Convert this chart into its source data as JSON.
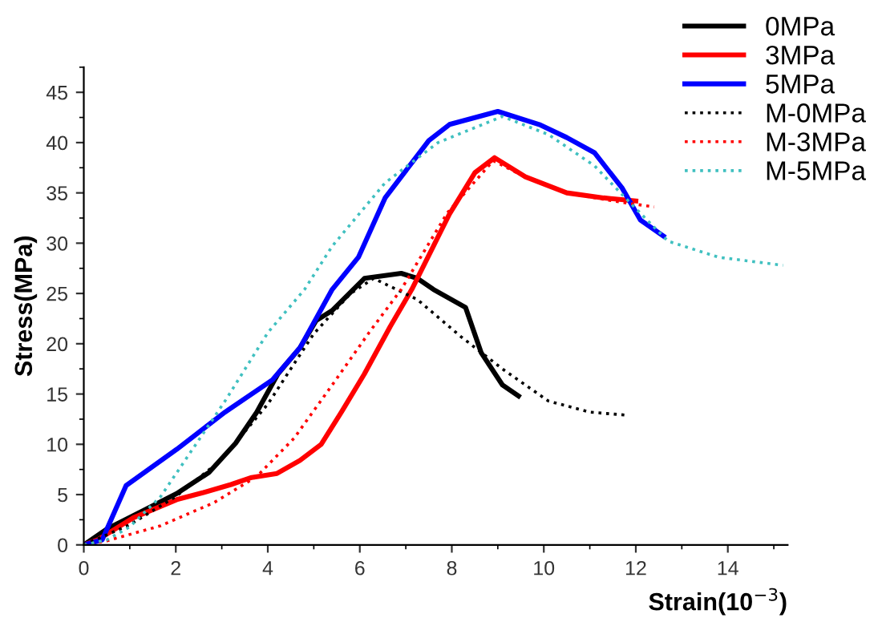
{
  "chart_data": {
    "type": "line",
    "xlabel": "Strain(10$^{−3}$)",
    "ylabel": "Stress(MPa)",
    "xlim": [
      0,
      15.3
    ],
    "xticks": [
      0,
      2,
      4,
      6,
      8,
      10,
      12,
      14
    ],
    "ylim": [
      0,
      47.5
    ],
    "yticks": [
      0,
      5,
      10,
      15,
      20,
      25,
      30,
      35,
      40,
      45
    ],
    "grid": false,
    "legend": "top right",
    "marker": "none",
    "series": [
      {
        "name": "0MPa",
        "color": "#000000",
        "line_style": "solid",
        "x": [
          0,
          0.51,
          1.2,
          2.02,
          2.72,
          3.3,
          3.76,
          4.22,
          4.7,
          5.05,
          5.4,
          6.1,
          6.9,
          7.25,
          7.6,
          8.3,
          8.64,
          9.1,
          9.45
        ],
        "values": [
          0,
          1.6,
          3.2,
          5.1,
          7.2,
          10.1,
          13.2,
          17,
          19.6,
          22.3,
          23.3,
          26.5,
          27.0,
          26.5,
          25.4,
          23.6,
          19.1,
          15.9,
          14.8
        ]
      },
      {
        "name": "3MPa",
        "color": "#ff0000",
        "line_style": "solid",
        "x": [
          0,
          0.3,
          1.08,
          2.02,
          2.6,
          3.2,
          3.65,
          4.2,
          4.7,
          5.16,
          5.6,
          6.1,
          6.66,
          7.13,
          7.95,
          8.5,
          8.93,
          9.6,
          10.5,
          11.3,
          12.0
        ],
        "values": [
          0,
          0.5,
          2.7,
          4.5,
          5.2,
          6.0,
          6.7,
          7.1,
          8.4,
          10.0,
          13.2,
          17,
          21.7,
          25.4,
          32.9,
          37.0,
          38.5,
          36.6,
          35.0,
          34.5,
          34.2
        ]
      },
      {
        "name": "5MPa",
        "color": "#0000ff",
        "line_style": "solid",
        "x": [
          0,
          0.4,
          0.92,
          2.02,
          3.07,
          4.1,
          4.7,
          5.4,
          5.97,
          6.55,
          7.5,
          7.95,
          9.0,
          9.9,
          10.5,
          11.1,
          11.7,
          12.1,
          12.6
        ],
        "values": [
          0,
          0.5,
          5.9,
          9.5,
          13.2,
          16.4,
          19.6,
          25.4,
          28.6,
          34.5,
          40.2,
          41.8,
          43.1,
          41.8,
          40.5,
          39,
          35.5,
          32.3,
          30.7
        ]
      },
      {
        "name": "M-0MPa",
        "color": "#000000",
        "line_style": "dotted",
        "x": [
          0,
          1,
          2,
          3,
          4,
          5,
          5.8,
          6.3,
          7.25,
          8.2,
          9.1,
          10.1,
          11.0,
          11.8
        ],
        "values": [
          0,
          2,
          4.8,
          8.5,
          14,
          21,
          25,
          26.5,
          24.4,
          20.7,
          17.5,
          14.3,
          13.2,
          12.9
        ]
      },
      {
        "name": "M-3MPa",
        "color": "#ff0000",
        "line_style": "dotted",
        "x": [
          0,
          0.5,
          1.67,
          2.83,
          3.76,
          4.57,
          5.4,
          6.2,
          6.9,
          7.9,
          8.9,
          9.5,
          10.5,
          11.5,
          12.4
        ],
        "values": [
          0,
          0.4,
          1.9,
          4.2,
          6.8,
          10.6,
          15.9,
          21.1,
          25.4,
          33,
          38.2,
          36.8,
          35,
          34.2,
          33.6
        ]
      },
      {
        "name": "M-5MPa",
        "color": "#40c0c0",
        "line_style": "dotted",
        "x": [
          0,
          0.5,
          1,
          1.67,
          3.07,
          4.0,
          4.8,
          5.4,
          6.55,
          7.7,
          9.1,
          10.1,
          11.1,
          11.9,
          12.7,
          13.8,
          15.2
        ],
        "values": [
          0,
          0.5,
          1.8,
          4.8,
          14.3,
          21.1,
          25.4,
          29.7,
          36,
          40,
          42.6,
          40.8,
          37.7,
          33.9,
          30.2,
          28.6,
          27.8
        ]
      }
    ]
  }
}
